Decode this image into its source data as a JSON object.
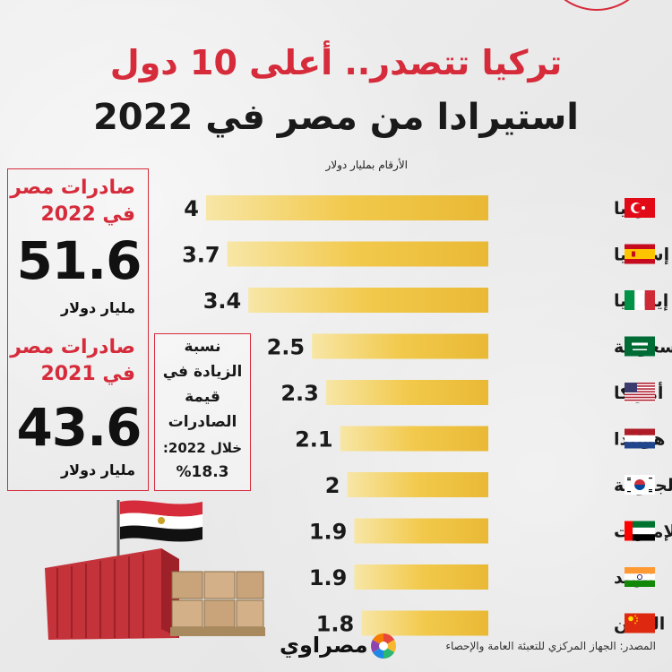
{
  "title_line1": "تركيا تتصدر.. أعلى 10 دول",
  "title_line2": "استيرادا من مصر في 2022",
  "colors": {
    "accent_red": "#d62b3b",
    "bar_gold": "#f2c94c",
    "text_dark": "#1a1a1a"
  },
  "chart_data": {
    "type": "bar",
    "orientation": "horizontal",
    "title": "أعلى 10 دول استيرادا من مصر في 2022",
    "unit_note": "الأرقام بمليار دولار",
    "categories": [
      "تركيا",
      "إسبانيا",
      "إيطاليا",
      "السعودية",
      "أمريكا",
      "هولندا",
      "كوريا الجنوبية",
      "الإمارات",
      "الهند",
      "الصين"
    ],
    "flags": [
      "turkey-flag",
      "spain-flag",
      "italy-flag",
      "saudi-flag",
      "usa-flag",
      "netherlands-flag",
      "south-korea-flag",
      "uae-flag",
      "india-flag",
      "china-flag"
    ],
    "values": [
      4,
      3.7,
      3.4,
      2.5,
      2.3,
      2.1,
      2,
      1.9,
      1.9,
      1.8
    ],
    "value_labels": [
      "4",
      "3.7",
      "3.4",
      "2.5",
      "2.3",
      "2.1",
      "2",
      "1.9",
      "1.9",
      "1.8"
    ],
    "xlim": [
      0,
      4
    ]
  },
  "stats": {
    "exports_2022_label_line1": "صادرات مصر",
    "exports_2022_label_line2": "في 2022",
    "exports_2022_value": "51.6",
    "exports_2022_unit": "مليار دولار",
    "exports_2021_label_line1": "صادرات مصر",
    "exports_2021_label_line2": "في 2021",
    "exports_2021_value": "43.6",
    "exports_2021_unit": "مليار دولار"
  },
  "increase": {
    "line1": "نسبة",
    "line2": "الزيادة في",
    "line3": "قيمة",
    "line4": "الصادرات",
    "line5": "خلال 2022:",
    "value": "%18.3"
  },
  "source": "المصدر: الجهاز المركزي للتعبئة العامة والإحصاء",
  "logo_text": "مصراوي"
}
